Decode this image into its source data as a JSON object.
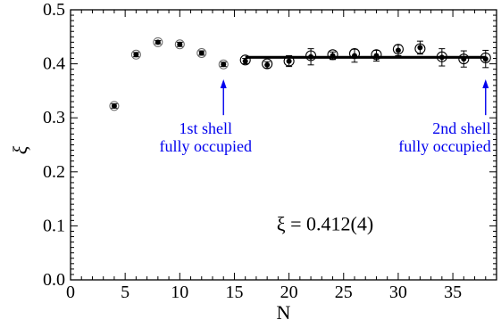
{
  "chart_data": {
    "type": "scatter",
    "xlabel": "N",
    "ylabel": "ξ",
    "xlim": [
      0,
      39
    ],
    "ylim": [
      0.0,
      0.5
    ],
    "x_ticks": [
      0,
      5,
      10,
      15,
      20,
      25,
      30,
      35
    ],
    "y_ticks": [
      0.0,
      0.1,
      0.2,
      0.3,
      0.4,
      0.5
    ],
    "y_tick_labels": [
      "0.0",
      "0.1",
      "0.2",
      "0.3",
      "0.4",
      "0.5"
    ],
    "grid": false,
    "series": [
      {
        "marker": "filled-dot",
        "x": [
          4,
          6,
          8,
          10,
          12,
          14,
          16,
          18,
          20,
          22,
          24,
          26,
          28,
          30,
          32,
          34,
          36,
          38
        ],
        "y": [
          0.322,
          0.417,
          0.44,
          0.436,
          0.42,
          0.399,
          0.405,
          0.398,
          0.405,
          0.413,
          0.415,
          0.415,
          0.415,
          0.425,
          0.43,
          0.412,
          0.409,
          0.409
        ],
        "yerr": [
          0.004,
          0.004,
          0.003,
          0.004,
          0.004,
          0.004,
          0.005,
          0.006,
          0.01,
          0.015,
          0.007,
          0.012,
          0.01,
          0.01,
          0.012,
          0.016,
          0.015,
          0.016
        ]
      },
      {
        "marker": "open-circle",
        "x": [
          16,
          18,
          20,
          22,
          24,
          26,
          28,
          30,
          32,
          34,
          36,
          38
        ],
        "y": [
          0.407,
          0.4,
          0.405,
          0.415,
          0.417,
          0.419,
          0.417,
          0.427,
          0.428,
          0.413,
          0.409,
          0.411
        ]
      }
    ],
    "fit_line": {
      "x": [
        16,
        38
      ],
      "y": 0.412
    },
    "annotations": [
      {
        "text_lines": [
          "1st shell",
          "fully occupied"
        ],
        "arrow_x": 14,
        "arrow_from_y": 0.305,
        "arrow_to_y": 0.368,
        "color": "#0000ee"
      },
      {
        "text_lines": [
          "2nd shell",
          "fully occupied"
        ],
        "arrow_x": 38,
        "arrow_from_y": 0.305,
        "arrow_to_y": 0.368,
        "color": "#0000ee"
      }
    ],
    "result_label": "ξ = 0.412(4)",
    "result_position": {
      "x": 23.3,
      "y": 0.103
    }
  }
}
